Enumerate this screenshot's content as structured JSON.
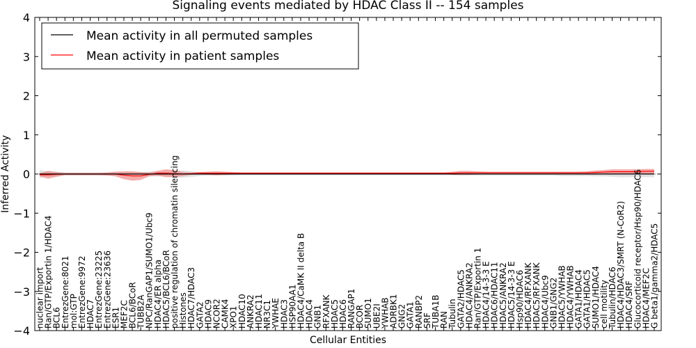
{
  "chart_data": {
    "type": "line",
    "title": "Signaling events mediated by HDAC Class II -- 154 samples",
    "xlabel": "Cellular Entities",
    "ylabel": "Inferred Activity",
    "ylim": [
      -4,
      4
    ],
    "yticks": [
      -4,
      -3,
      -2,
      -1,
      0,
      1,
      2,
      3,
      4
    ],
    "ytick_labels": [
      "−4",
      "−3",
      "−2",
      "−1",
      "0",
      "1",
      "2",
      "3",
      "4"
    ],
    "legend": {
      "placement": "top-left",
      "entries": [
        {
          "label": "Mean activity in all permuted samples",
          "color": "#000000"
        },
        {
          "label": "Mean activity in patient samples",
          "color": "#ff0000"
        }
      ]
    },
    "categories": [
      "nuclear import",
      "Ran/GTP/Exportin 1/HDAC4",
      "BCL6",
      "EntrezGene:8021",
      "mol:GTP",
      "EntrezGene:9972",
      "HDAC7",
      "EntrezGene:23225",
      "EntrezGene:23636",
      "ESR1",
      "MEF2C",
      "BCL6/BCoR",
      "TUBB2A",
      "NPC/RanGAP1/SUMO1/Ubc9",
      "HDAC4/ER alpha",
      "HDAC5/BCL6/BCoR",
      "positive regulation of chromatin silencing",
      "Histones",
      "HDAC7/HDAC3",
      "GATA2",
      "HDAC9",
      "NCOR2",
      "CAMK4",
      "XPO1",
      "HDAC10",
      "ANKRA2",
      "HDAC11",
      "NR3C1",
      "YWHAE",
      "HDAC3",
      "HSP90AA1",
      "HDAC4/CaMK II delta B",
      "HDAC4",
      "GNB1",
      "RFXANK",
      "HDAC5",
      "HDAC6",
      "RANGAP1",
      "BCOR",
      "SUMO1",
      "UBE2I",
      "YWHAB",
      "ADRBK1",
      "GNG2",
      "GATA1",
      "RANBP2",
      "SRF",
      "TUBA1B",
      "RAN",
      "Tubulin",
      "GATA2/HDAC5",
      "HDAC4/ANKRA2",
      "Ran/GTP/Exportin 1",
      "HDAC4/14-3-3 E",
      "HDAC6/HDAC11",
      "HDAC5/ANKRA2",
      "HDAC5/14-3-3 E",
      "Hsp90/HDAC6",
      "HDAC4/RFXANK",
      "HDAC5/RFXANK",
      "HDAC4/Ubc9",
      "GNB1/GNG2",
      "HDAC5/YWHAB",
      "HDAC4/YWHAB",
      "GATA1/HDAC4",
      "GATA1/HDAC5",
      "SUMO1/HDAC4",
      "cell motility",
      "Tubulin/HDAC6",
      "HDAC4/HDAC3/SMRT (N-CoR2)",
      "HDAC4/SRF",
      "Glucocorticoid receptor/Hsp90/HDAC6",
      "HDAC4/MEF2C",
      "G beta1/gamma2/HDAC5"
    ],
    "series": [
      {
        "name": "Mean activity in all permuted samples",
        "color": "#000000",
        "values": [
          0,
          0,
          0,
          0,
          0,
          0,
          0,
          0,
          0,
          0,
          0,
          0,
          0,
          0,
          0,
          0,
          0,
          0,
          0,
          0,
          0,
          0,
          0,
          0,
          0,
          0,
          0,
          0,
          0,
          0,
          0,
          0,
          0,
          0,
          0,
          0,
          0,
          0,
          0,
          0,
          0,
          0,
          0,
          0,
          0,
          0,
          0,
          0,
          0,
          0,
          0,
          0,
          0,
          0,
          0,
          0,
          0,
          0,
          0,
          0,
          0,
          0,
          0,
          0,
          0,
          0,
          0,
          0,
          0,
          0,
          0,
          0,
          0,
          0
        ],
        "band": [
          0.1,
          0.07,
          0.06,
          0.04,
          0.04,
          0.04,
          0.04,
          0.04,
          0.04,
          0.04,
          0.04,
          0.04,
          0.05,
          0.06,
          0.06,
          0.06,
          0.08,
          0.09,
          0.07,
          0.05,
          0.04,
          0.04,
          0.04,
          0.04,
          0.03,
          0.03,
          0.03,
          0.03,
          0.03,
          0.03,
          0.03,
          0.03,
          0.03,
          0.03,
          0.03,
          0.03,
          0.03,
          0.03,
          0.03,
          0.03,
          0.03,
          0.03,
          0.03,
          0.03,
          0.03,
          0.03,
          0.03,
          0.03,
          0.03,
          0.03,
          0.04,
          0.04,
          0.04,
          0.04,
          0.04,
          0.04,
          0.04,
          0.04,
          0.04,
          0.04,
          0.04,
          0.04,
          0.05,
          0.05,
          0.05,
          0.05,
          0.06,
          0.06,
          0.07,
          0.08,
          0.08,
          0.08,
          0.08,
          0.08
        ]
      },
      {
        "name": "Mean activity in patient samples",
        "color": "#ff0000",
        "values": [
          -0.02,
          -0.02,
          -0.01,
          0,
          0,
          0,
          0,
          0,
          0,
          0,
          -0.03,
          -0.05,
          -0.05,
          -0.01,
          0.02,
          0.02,
          0.01,
          0,
          0.01,
          0.02,
          0.02,
          0.02,
          0.02,
          0.02,
          0.02,
          0.02,
          0.02,
          0.02,
          0.02,
          0.02,
          0.02,
          0.02,
          0.02,
          0.02,
          0.02,
          0.02,
          0.02,
          0.02,
          0.02,
          0.02,
          0.02,
          0.02,
          0.02,
          0.02,
          0.02,
          0.02,
          0.02,
          0.02,
          0.02,
          0.02,
          0.03,
          0.03,
          0.03,
          0.03,
          0.03,
          0.03,
          0.03,
          0.03,
          0.03,
          0.03,
          0.03,
          0.03,
          0.03,
          0.03,
          0.03,
          0.03,
          0.04,
          0.05,
          0.06,
          0.06,
          0.06,
          0.06,
          0.07,
          0.07
        ],
        "band": [
          0.04,
          0.1,
          0.06,
          0.03,
          0.03,
          0.03,
          0.03,
          0.03,
          0.04,
          0.06,
          0.1,
          0.12,
          0.1,
          0.05,
          0.06,
          0.1,
          0.09,
          0.05,
          0.03,
          0.03,
          0.04,
          0.05,
          0.04,
          0.03,
          0.02,
          0.02,
          0.02,
          0.02,
          0.02,
          0.02,
          0.02,
          0.02,
          0.02,
          0.02,
          0.02,
          0.02,
          0.02,
          0.02,
          0.02,
          0.02,
          0.02,
          0.02,
          0.02,
          0.02,
          0.02,
          0.02,
          0.02,
          0.02,
          0.02,
          0.04,
          0.05,
          0.05,
          0.04,
          0.03,
          0.03,
          0.03,
          0.03,
          0.03,
          0.03,
          0.03,
          0.03,
          0.03,
          0.03,
          0.03,
          0.03,
          0.04,
          0.05,
          0.05,
          0.06,
          0.06,
          0.06,
          0.06,
          0.06,
          0.06
        ]
      }
    ]
  }
}
